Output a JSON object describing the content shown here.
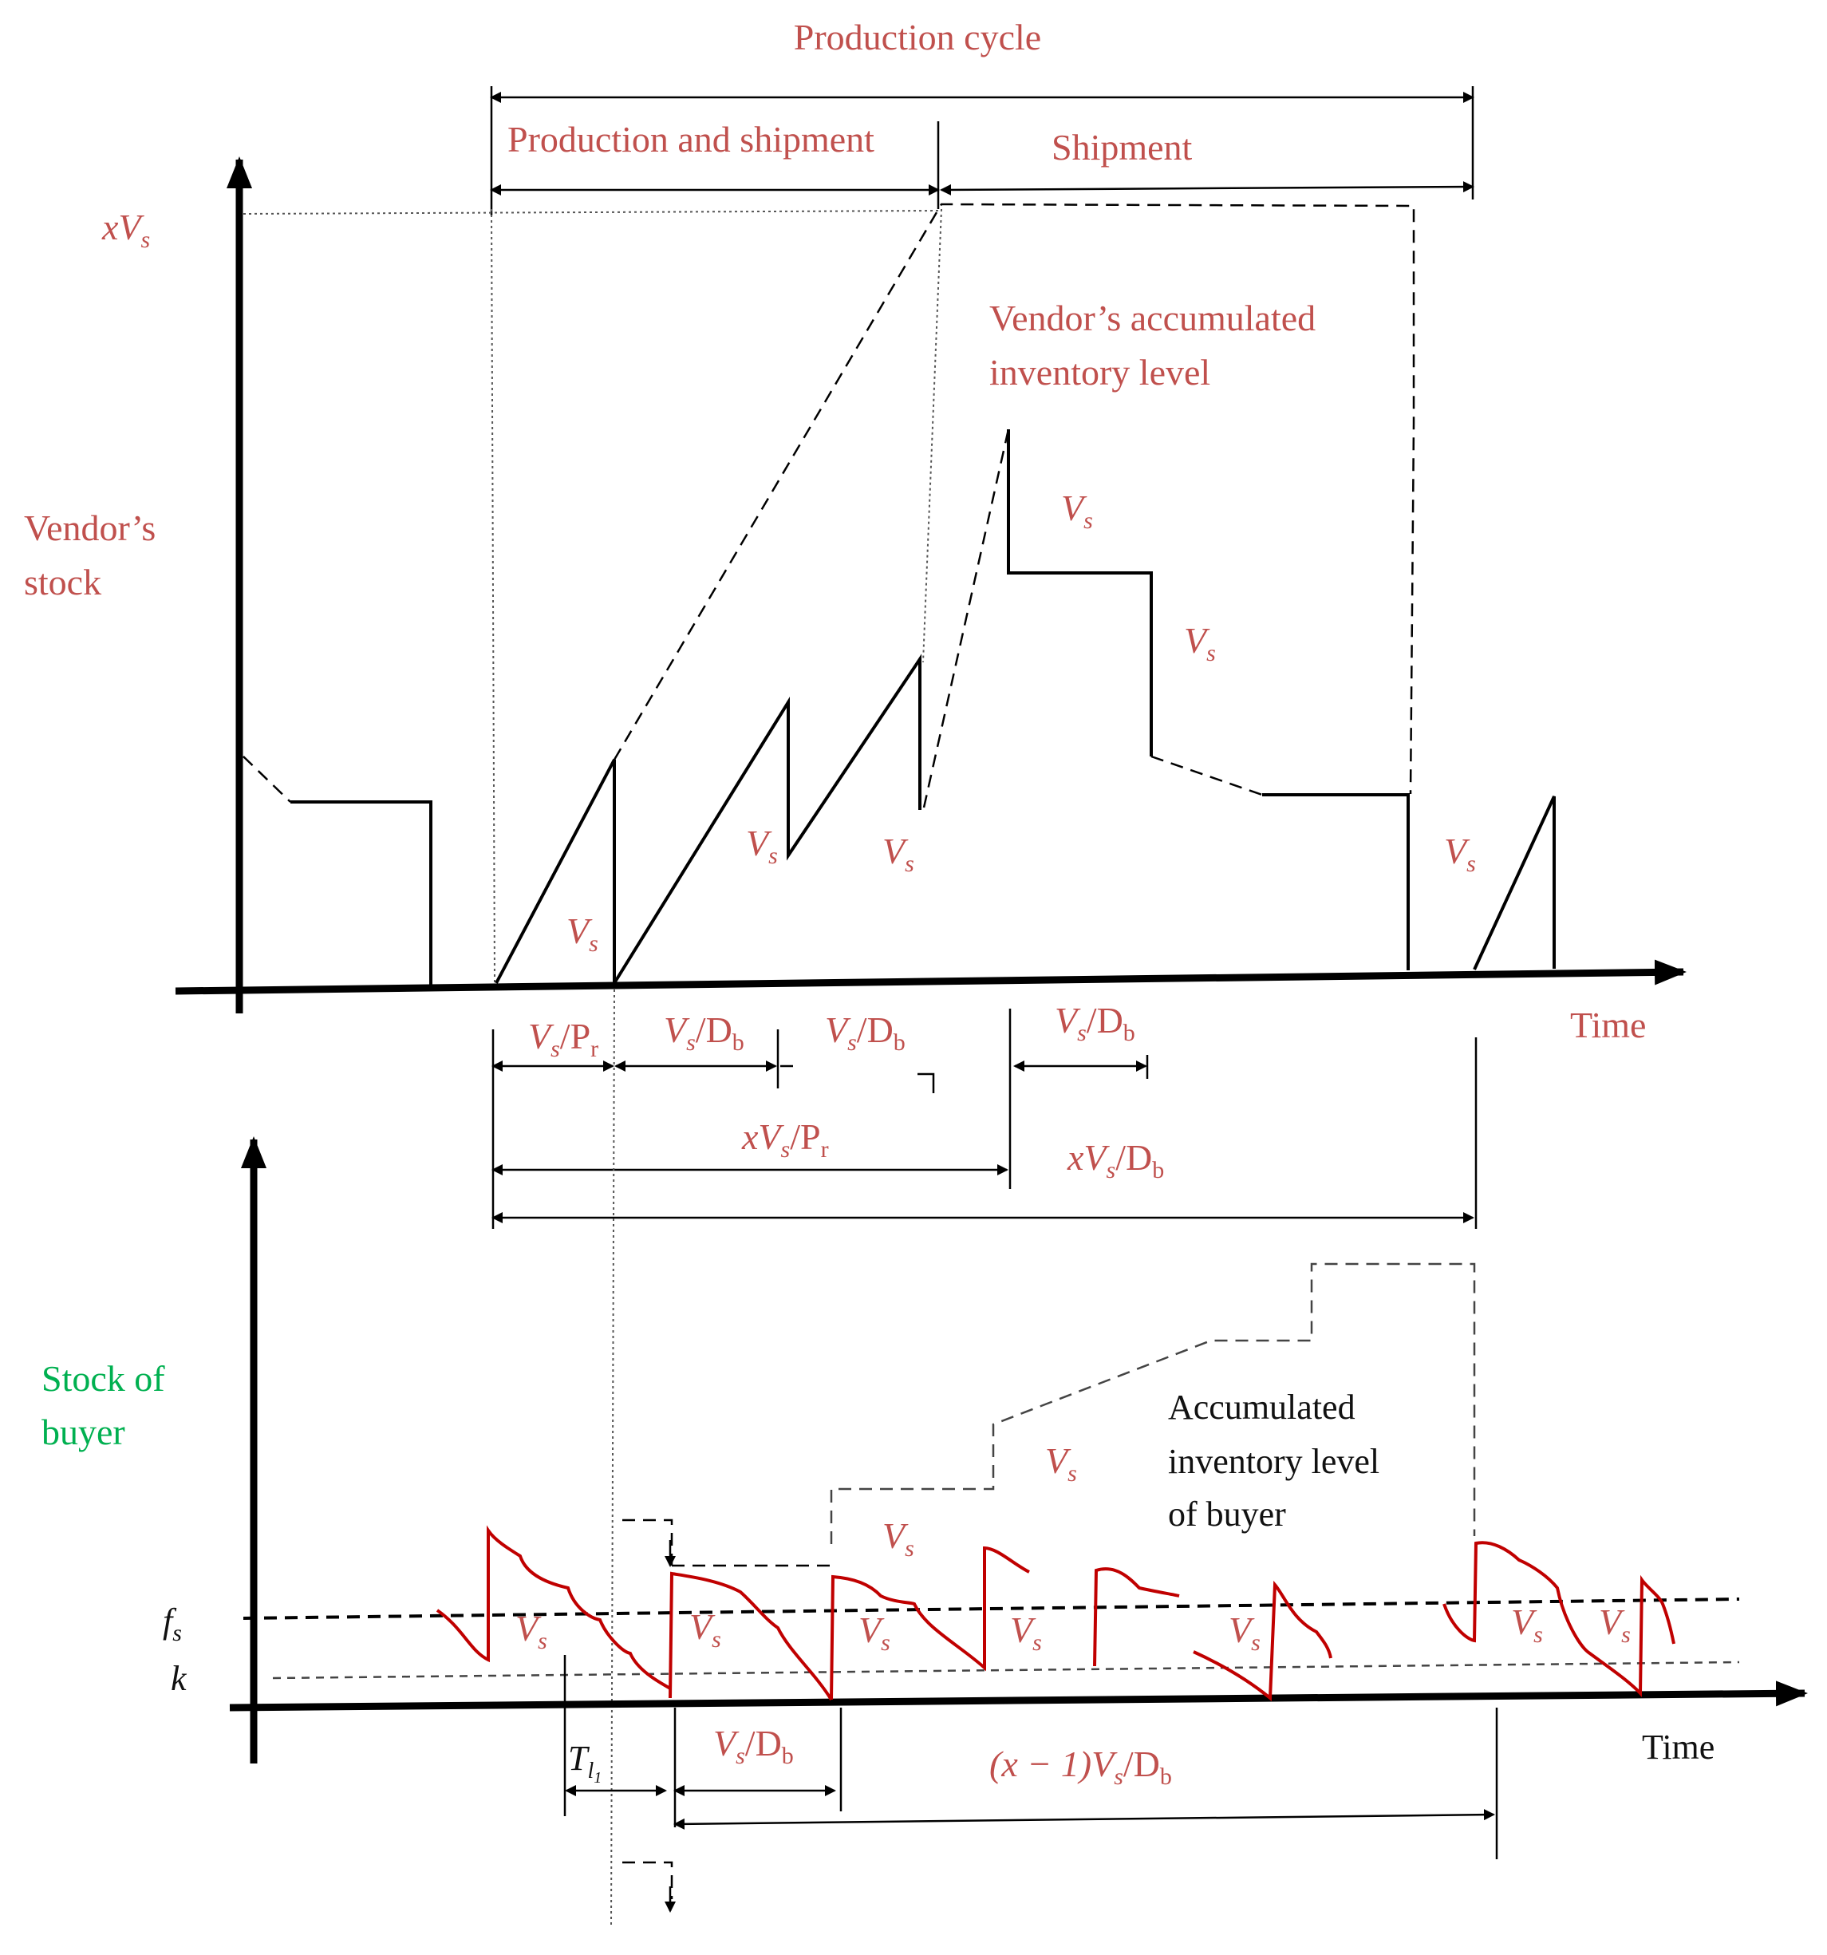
{
  "title": "Production cycle",
  "phase_labels": {
    "production_and_shipment": "Production and shipment",
    "shipment": "Shipment"
  },
  "vendor": {
    "axis_label_line1": "Vendor’s",
    "axis_label_line2": "stock",
    "peak_label": "xV",
    "peak_sub": "s",
    "curve_label_line1": "Vendor’s    accumulated",
    "curve_label_line2": "inventory level",
    "time_label": "Time",
    "batch_label": "V",
    "batch_sub": "s"
  },
  "intervals": {
    "vs_pr": "V",
    "vs_pr_sub": "s",
    "vs_pr_tail": "/P",
    "vs_pr_tail_sub": "r",
    "vs_db": "V",
    "vs_db_sub": "s",
    "vs_db_tail": "/D",
    "vs_db_tail_sub": "b",
    "xvs_pr_x": "xV",
    "xvs_pr_sub": "s",
    "xvs_pr_tail": "/P",
    "xvs_pr_tail_sub": "r",
    "xvs_db_x": "xV",
    "xvs_db_sub": "s",
    "xvs_db_tail": "/D",
    "xvs_db_tail_sub": "b",
    "xm1_head": "(x − 1)V",
    "xm1_sub": "s",
    "xm1_tail": "/D",
    "xm1_tail_sub": "b"
  },
  "buyer": {
    "axis_label_line1": "Stock    of",
    "axis_label_line2": "buyer",
    "curve_label_line1": "Accumulated",
    "curve_label_line2": "inventory    level",
    "curve_label_line3": "of buyer",
    "fs_label": "f",
    "fs_sub": "s",
    "k_label": "k",
    "tl_label": "T",
    "tl_sub": "l",
    "tl_subsub": "1",
    "time_label": "Time"
  }
}
